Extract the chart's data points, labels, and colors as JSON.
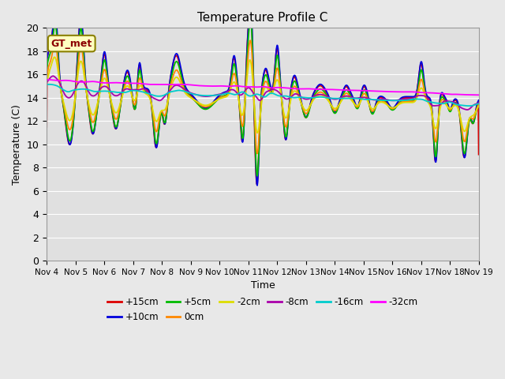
{
  "title": "Temperature Profile C",
  "xlabel": "Time",
  "ylabel": "Temperature (C)",
  "ylim": [
    0,
    20
  ],
  "yticks": [
    0,
    2,
    4,
    6,
    8,
    10,
    12,
    14,
    16,
    18,
    20
  ],
  "xlim": [
    0,
    15
  ],
  "xtick_labels": [
    "Nov 4",
    "Nov 5",
    "Nov 6",
    "Nov 7",
    "Nov 8",
    "Nov 9",
    "Nov 10",
    "Nov 11",
    "Nov 12",
    "Nov 13",
    "Nov 14",
    "Nov 15",
    "Nov 16",
    "Nov 17",
    "Nov 18",
    "Nov 19"
  ],
  "annotation_text": "GT_met",
  "annotation_fg": "#8B0000",
  "annotation_bg": "#ffffc0",
  "annotation_edge": "#8B8000",
  "fig_bg": "#e8e8e8",
  "plot_bg": "#e0e0e0",
  "grid_color": "#ffffff",
  "series": [
    {
      "label": "+15cm",
      "color": "#dd0000",
      "lw": 1.3
    },
    {
      "label": "+10cm",
      "color": "#0000dd",
      "lw": 1.3
    },
    {
      "label": "+5cm",
      "color": "#00bb00",
      "lw": 1.3
    },
    {
      "label": "0cm",
      "color": "#ff8800",
      "lw": 1.3
    },
    {
      "label": "-2cm",
      "color": "#dddd00",
      "lw": 1.3
    },
    {
      "label": "-8cm",
      "color": "#aa00aa",
      "lw": 1.3
    },
    {
      "label": "-16cm",
      "color": "#00cccc",
      "lw": 1.3
    },
    {
      "label": "-32cm",
      "color": "#ff00ff",
      "lw": 1.3
    }
  ]
}
